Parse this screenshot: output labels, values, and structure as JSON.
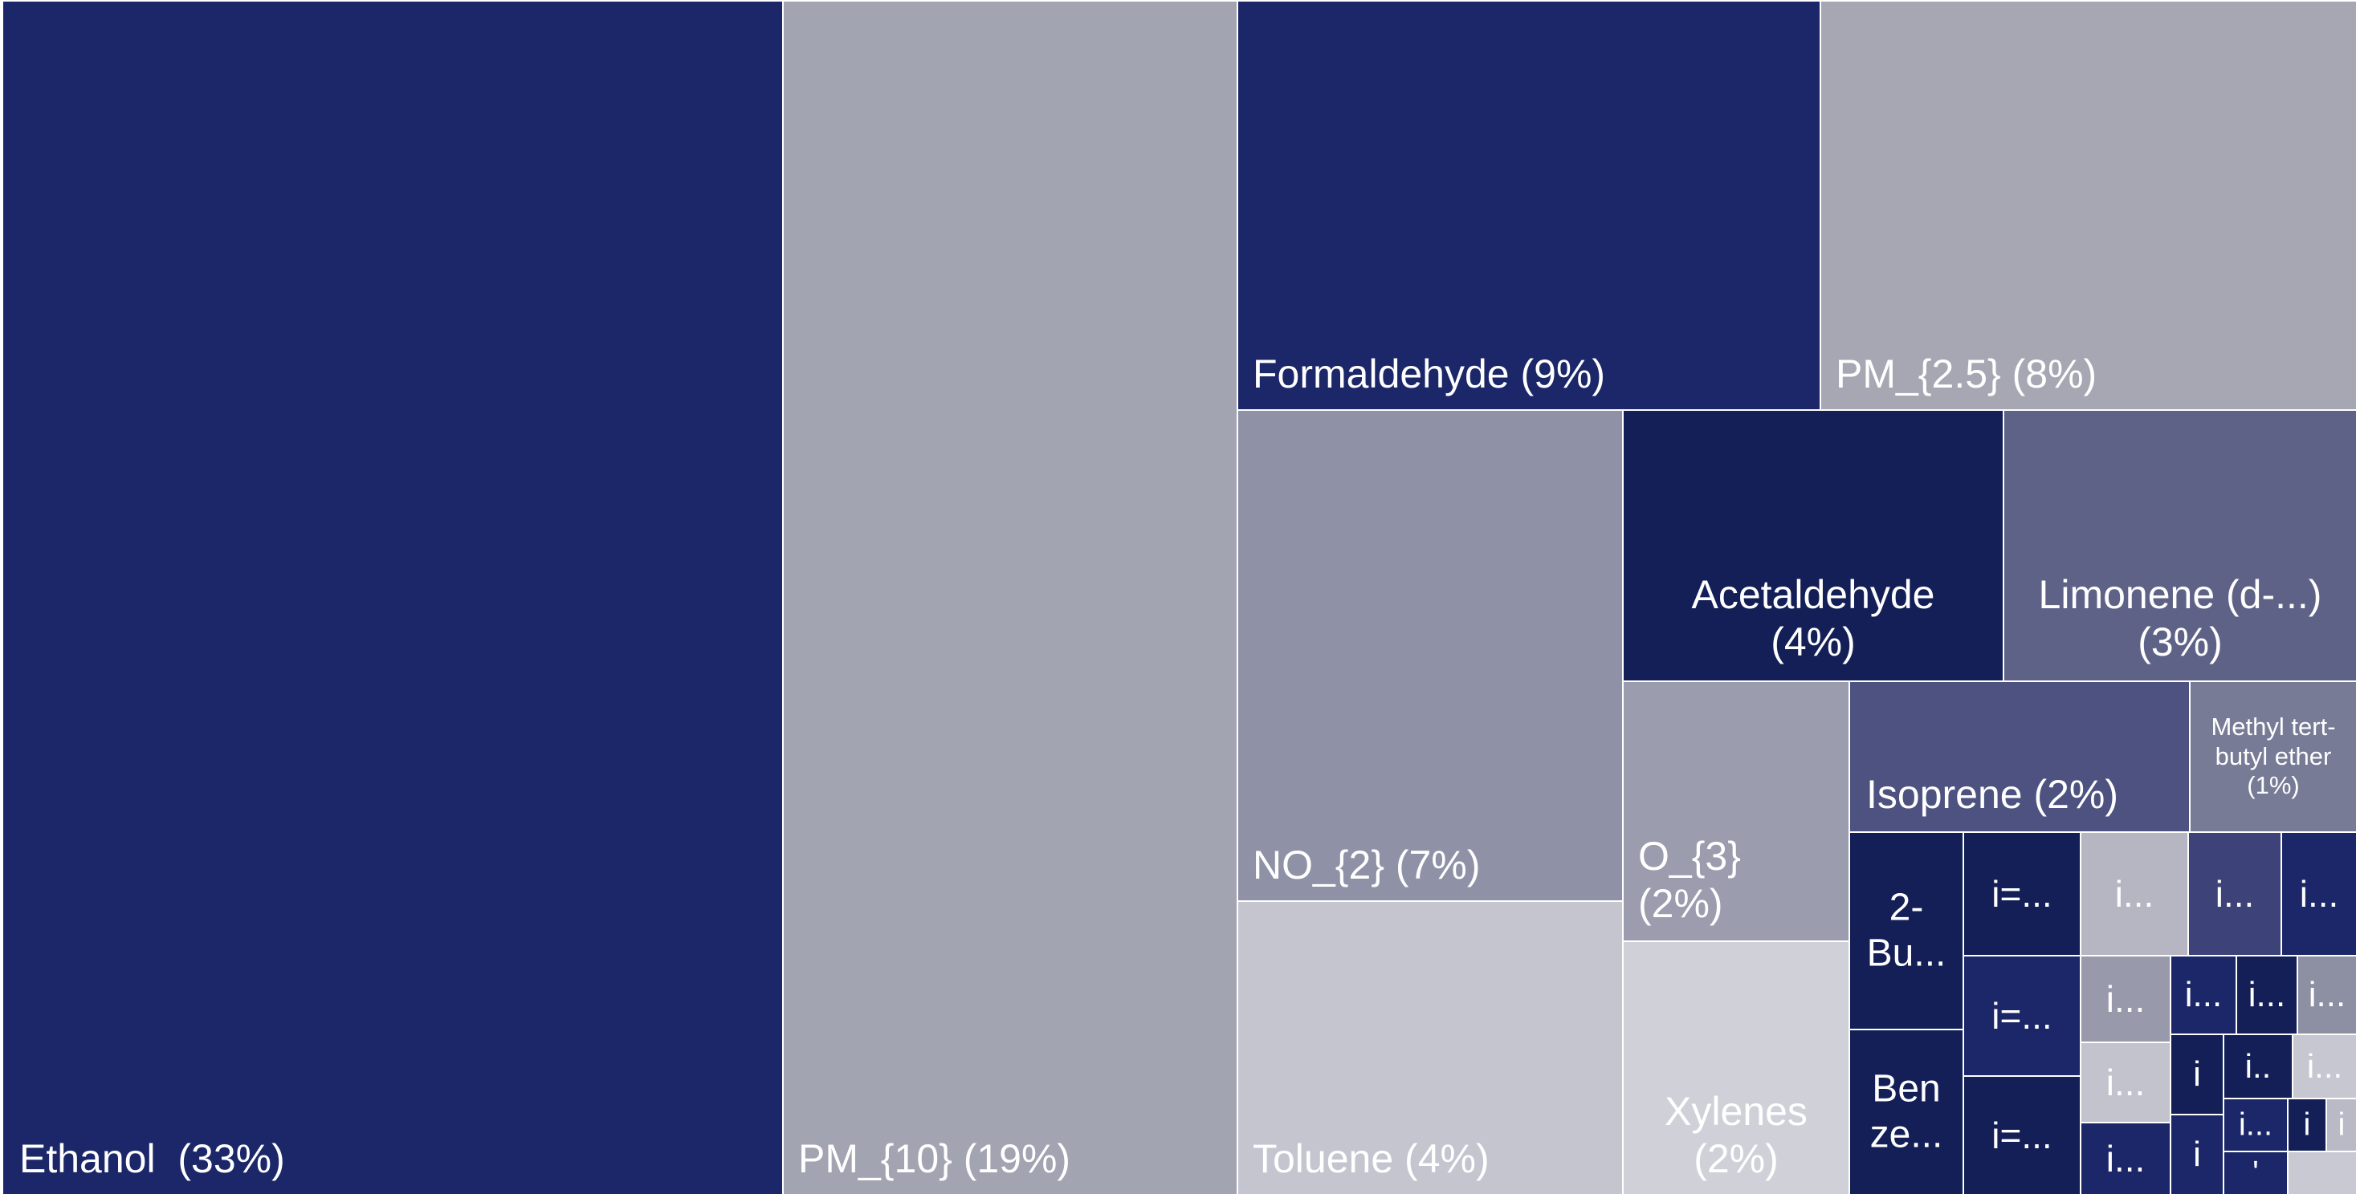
{
  "chart_data": {
    "type": "treemap",
    "title": "",
    "items": [
      {
        "name": "Ethanol",
        "label": "Ethanol  (33%)",
        "value": 33,
        "color": "#1b2768"
      },
      {
        "name": "PM_{10}",
        "label": "PM_{10} (19%)",
        "value": 19,
        "color": "#a2a4b2"
      },
      {
        "name": "Formaldehyde",
        "label": "Formaldehyde (9%)",
        "value": 9,
        "color": "#1b2768"
      },
      {
        "name": "PM_{2.5}",
        "label": "PM_{2.5} (8%)",
        "value": 8,
        "color": "#a6a7b3"
      },
      {
        "name": "NO_{2}",
        "label": "NO_{2} (7%)",
        "value": 7,
        "color": "#8f92a6"
      },
      {
        "name": "Toluene",
        "label": "Toluene (4%)",
        "value": 4,
        "color": "#c4c5cf"
      },
      {
        "name": "Acetaldehyde",
        "label": "Acetaldehyde\n(4%)",
        "value": 4,
        "color": "#131f56"
      },
      {
        "name": "Limonene (d-...)",
        "label": "Limonene (d-...)\n(3%)",
        "value": 3,
        "color": "#5f6287"
      },
      {
        "name": "O_{3}",
        "label": "O_{3}\n(2%)",
        "value": 2,
        "color": "#9b9cae"
      },
      {
        "name": "Xylenes",
        "label": "Xylenes\n(2%)",
        "value": 2,
        "color": "#d0d1d8"
      },
      {
        "name": "Isoprene",
        "label": "Isoprene (2%)",
        "value": 2,
        "color": "#4d5280"
      },
      {
        "name": "Methyl tert-butyl ether",
        "label": "Methyl tert-\nbutyl ether\n(1%)",
        "value": 1,
        "color": "#777b96"
      },
      {
        "name": "2-Bu...",
        "label": "2-\nBu...",
        "value": null,
        "color": "#131f56"
      },
      {
        "name": "Benze...",
        "label": "Ben\nze...",
        "value": null,
        "color": "#131f56"
      },
      {
        "name": "i=...",
        "label": "i=...",
        "value": null,
        "color": "#131f56"
      },
      {
        "name": "i=...",
        "label": "i=...",
        "value": null,
        "color": "#1b2768"
      },
      {
        "name": "i=...",
        "label": "i=...",
        "value": null,
        "color": "#131f56"
      },
      {
        "name": "i...",
        "label": "i...",
        "value": null,
        "color": "#b5b6c2"
      },
      {
        "name": "i...",
        "label": "i...",
        "value": null,
        "color": "#9899ab"
      },
      {
        "name": "i...",
        "label": "i...",
        "value": null,
        "color": "#c2c3cd"
      },
      {
        "name": "i...",
        "label": "i...",
        "value": null,
        "color": "#1b2768"
      },
      {
        "name": "i...",
        "label": "i...",
        "value": null,
        "color": "#3d4278"
      },
      {
        "name": "i...",
        "label": "i...",
        "value": null,
        "color": "#1b2768"
      },
      {
        "name": "i...",
        "label": "i...",
        "value": null,
        "color": "#1b2768"
      },
      {
        "name": "i...",
        "label": "i...",
        "value": null,
        "color": "#131f56"
      },
      {
        "name": "i...",
        "label": "i...",
        "value": null,
        "color": "#8d8fa3"
      },
      {
        "name": "i",
        "label": "i",
        "value": null,
        "color": "#131f56"
      },
      {
        "name": "i..",
        "label": "i..",
        "value": null,
        "color": "#131f56"
      },
      {
        "name": "i...",
        "label": "i...",
        "value": null,
        "color": "#c6c7d1"
      },
      {
        "name": "i",
        "label": "i",
        "value": null,
        "color": "#1b2768"
      },
      {
        "name": "i...",
        "label": "i...",
        "value": null,
        "color": "#1b2768"
      },
      {
        "name": "i",
        "label": "i",
        "value": null,
        "color": "#131f56"
      },
      {
        "name": "i",
        "label": "i",
        "value": null,
        "color": "#b9bac6"
      },
      {
        "name": "'",
        "label": "'",
        "value": null,
        "color": "#1b2768"
      },
      {
        "name": "",
        "label": "",
        "value": null,
        "color": "#c8c9d2"
      }
    ]
  }
}
